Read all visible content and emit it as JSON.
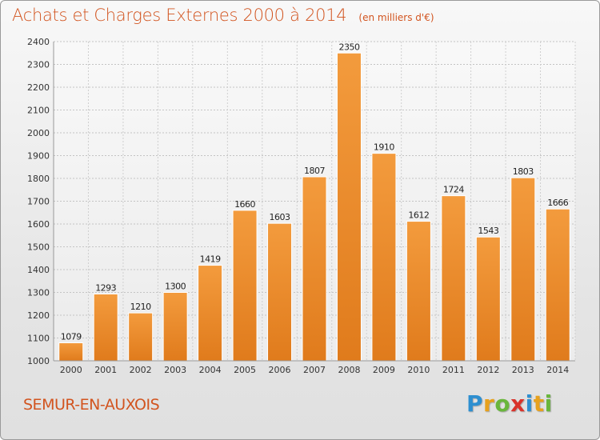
{
  "title": "Achats et Charges Externes 2000 à 2014",
  "unit_label": "(en milliers d'€)",
  "city": "SEMUR-EN-AUXOIS",
  "logo": {
    "text": "Proxiti",
    "letters": [
      "P",
      "r",
      "o",
      "x",
      "i",
      "t",
      "i"
    ],
    "letter_colors": [
      "#2e8fd0",
      "#e7a11d",
      "#69b63c",
      "#d9332b",
      "#2e8fd0",
      "#e7a11d",
      "#69b63c"
    ]
  },
  "chart_data": {
    "type": "bar",
    "categories": [
      "2000",
      "2001",
      "2002",
      "2003",
      "2004",
      "2005",
      "2006",
      "2007",
      "2008",
      "2009",
      "2010",
      "2011",
      "2012",
      "2013",
      "2014"
    ],
    "values": [
      1079,
      1293,
      1210,
      1300,
      1419,
      1660,
      1603,
      1807,
      2350,
      1910,
      1612,
      1724,
      1543,
      1803,
      1666
    ],
    "ylim": [
      1000,
      2400
    ],
    "yticks": [
      1000,
      1100,
      1200,
      1300,
      1400,
      1500,
      1600,
      1700,
      1800,
      1900,
      2000,
      2100,
      2200,
      2300,
      2400
    ],
    "grid": true,
    "data_labels": true,
    "bar_color": "#f39b3d",
    "bar_color_dark": "#e07b1c"
  }
}
